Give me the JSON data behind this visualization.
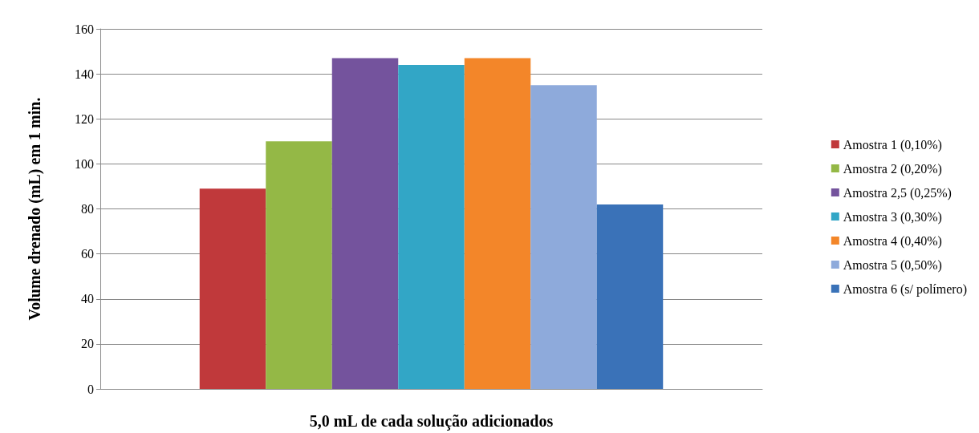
{
  "chart_data": {
    "type": "bar",
    "xlabel": "5,0 mL de cada solução adicionados",
    "ylabel": "Volume drenado (mL) em 1 min.",
    "categories": [
      null
    ],
    "series": [
      {
        "name": "Amostra 1 (0,10%)",
        "color": "#c0393b",
        "values": [
          89
        ]
      },
      {
        "name": "Amostra 2 (0,20%)",
        "color": "#94b846",
        "values": [
          110
        ]
      },
      {
        "name": "Amostra 2,5 (0,25%)",
        "color": "#74539d",
        "values": [
          147
        ]
      },
      {
        "name": "Amostra 3 (0,30%)",
        "color": "#32a6c6",
        "values": [
          144
        ]
      },
      {
        "name": "Amostra 4 (0,40%)",
        "color": "#f38629",
        "values": [
          147
        ]
      },
      {
        "name": "Amostra 5 (0,50%)",
        "color": "#8eaadb",
        "values": [
          135
        ]
      },
      {
        "name": "Amostra 6 (s/ polímero)",
        "color": "#3a72b8",
        "values": [
          82
        ]
      }
    ],
    "ylim": [
      0,
      160
    ],
    "yticks": [
      0,
      20,
      40,
      60,
      80,
      100,
      120,
      140,
      160
    ],
    "grid": "y",
    "legend": "right"
  }
}
